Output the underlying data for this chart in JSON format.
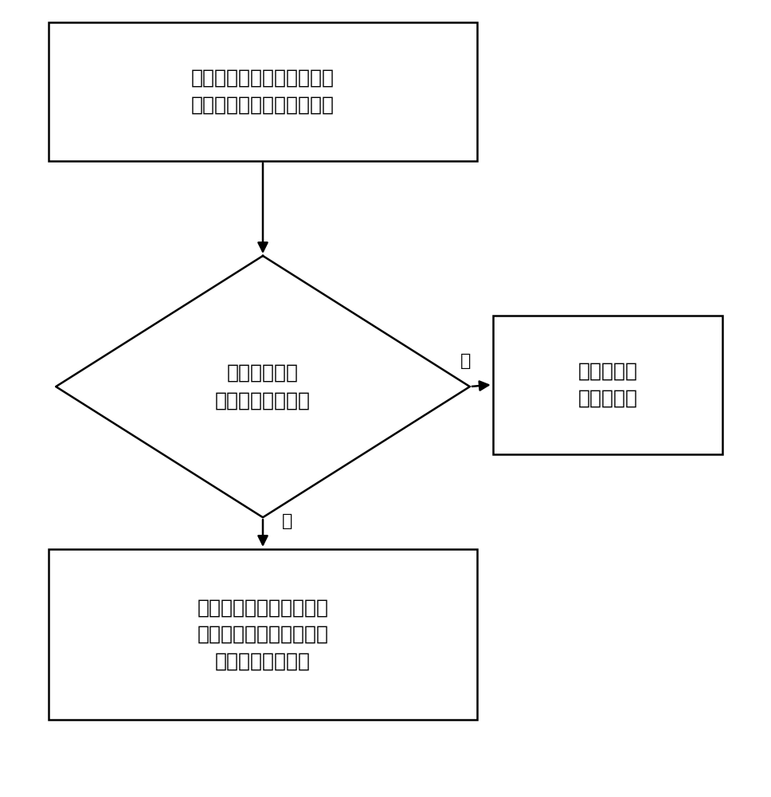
{
  "bg_color": "#ffffff",
  "line_color": "#000000",
  "text_color": "#000000",
  "font_size": 18,
  "label_font_size": 16,
  "top_box_text": "将各个监测点的当前通风参\n数分别与预设条件进行比对",
  "diamond_text": "当前通风参数\n是否满足预设条件",
  "right_box_text": "监测点的通\n风状态正常",
  "bottom_box_text": "获取监测点的位置信息，\n并根据监测点的位置信息\n发送第二报警信号",
  "yes_label": "是",
  "no_label": "否",
  "arrow_color": "#000000"
}
